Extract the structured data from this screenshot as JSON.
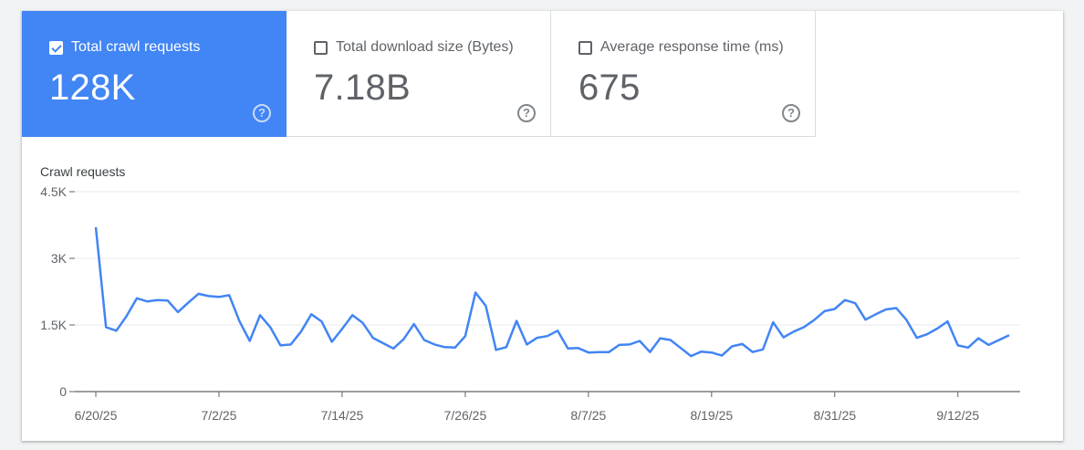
{
  "tiles": [
    {
      "label": "Total crawl requests",
      "value": "128K",
      "checked": true
    },
    {
      "label": "Total download size (Bytes)",
      "value": "7.18B",
      "checked": false
    },
    {
      "label": "Average response time (ms)",
      "value": "675",
      "checked": false
    }
  ],
  "help_glyph": "?",
  "colors": {
    "accent": "#4285f4",
    "line": "#4285f4",
    "grid": "#e8eaed",
    "axis": "#5f6368"
  },
  "chart_data": {
    "type": "line",
    "title": "Crawl requests",
    "ylabel": "Crawl requests",
    "y_ticks": [
      0,
      1500,
      3000,
      4500
    ],
    "y_tick_labels": [
      "0",
      "1.5K",
      "3K",
      "4.5K"
    ],
    "ylim": [
      0,
      4500
    ],
    "x_tick_labels": [
      "6/20/25",
      "7/2/25",
      "7/14/25",
      "7/26/25",
      "8/7/25",
      "8/19/25",
      "8/31/25",
      "9/12/25"
    ],
    "x_tick_index": [
      0,
      12,
      24,
      36,
      48,
      60,
      72,
      84
    ],
    "grid": true,
    "series": [
      {
        "values": [
          3700,
          1450,
          1370,
          1700,
          2100,
          2030,
          2060,
          2050,
          1790,
          2000,
          2200,
          2150,
          2130,
          2170,
          1580,
          1140,
          1720,
          1450,
          1040,
          1060,
          1350,
          1740,
          1580,
          1120,
          1410,
          1720,
          1550,
          1210,
          1090,
          970,
          1180,
          1520,
          1160,
          1060,
          1000,
          990,
          1250,
          2230,
          1930,
          940,
          1000,
          1590,
          1060,
          1210,
          1250,
          1370,
          970,
          980,
          880,
          890,
          890,
          1050,
          1060,
          1140,
          890,
          1200,
          1160,
          980,
          800,
          900,
          880,
          810,
          1020,
          1070,
          890,
          950,
          1560,
          1220,
          1350,
          1450,
          1610,
          1810,
          1860,
          2060,
          1990,
          1620,
          1740,
          1850,
          1880,
          1610,
          1210,
          1290,
          1420,
          1580,
          1040,
          990,
          1200,
          1050,
          1160,
          1270
        ]
      }
    ]
  }
}
